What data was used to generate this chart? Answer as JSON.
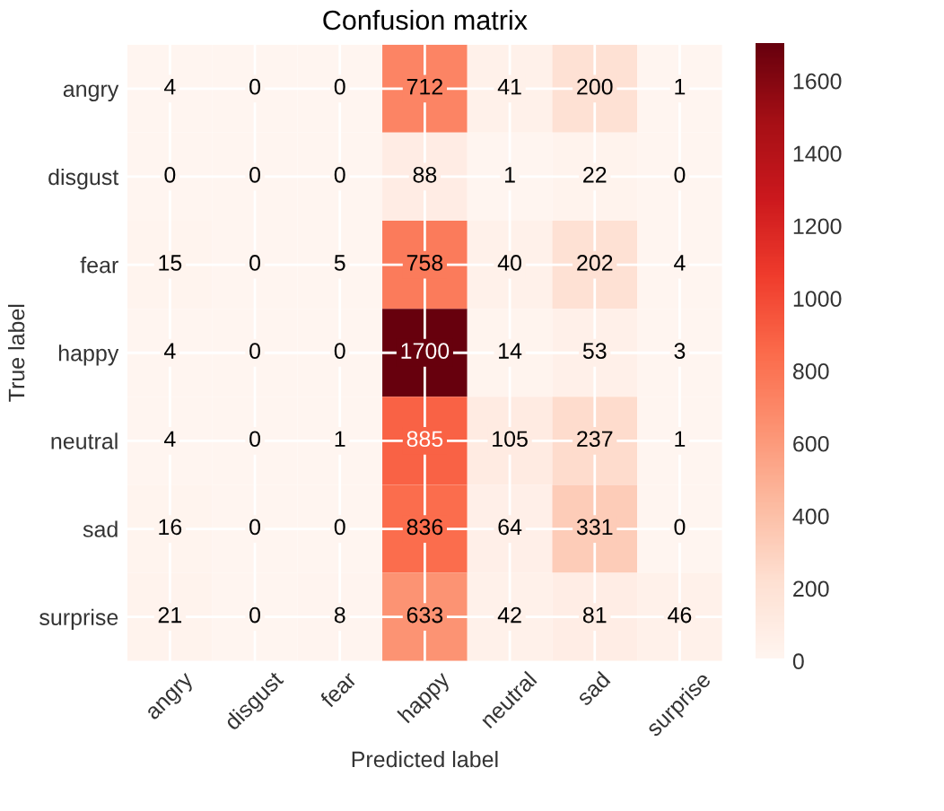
{
  "chart_data": {
    "type": "heatmap",
    "title": "Confusion matrix",
    "xlabel": "Predicted label",
    "ylabel": "True label",
    "categories": [
      "angry",
      "disgust",
      "fear",
      "happy",
      "neutral",
      "sad",
      "surprise"
    ],
    "y_categories": [
      "angry",
      "disgust",
      "fear",
      "happy",
      "neutral",
      "sad",
      "surprise"
    ],
    "cells": [
      [
        4,
        0,
        0,
        712,
        41,
        200,
        1
      ],
      [
        0,
        0,
        0,
        88,
        1,
        22,
        0
      ],
      [
        15,
        0,
        5,
        758,
        40,
        202,
        4
      ],
      [
        4,
        0,
        0,
        1700,
        14,
        53,
        3
      ],
      [
        4,
        0,
        1,
        885,
        105,
        237,
        1
      ],
      [
        16,
        0,
        0,
        836,
        64,
        331,
        0
      ],
      [
        21,
        0,
        8,
        633,
        42,
        81,
        46
      ]
    ],
    "data_labels": true,
    "clim": [
      0,
      1700
    ],
    "cticks": [
      0,
      200,
      400,
      600,
      800,
      1000,
      1200,
      1400,
      1600
    ],
    "grid": true
  }
}
